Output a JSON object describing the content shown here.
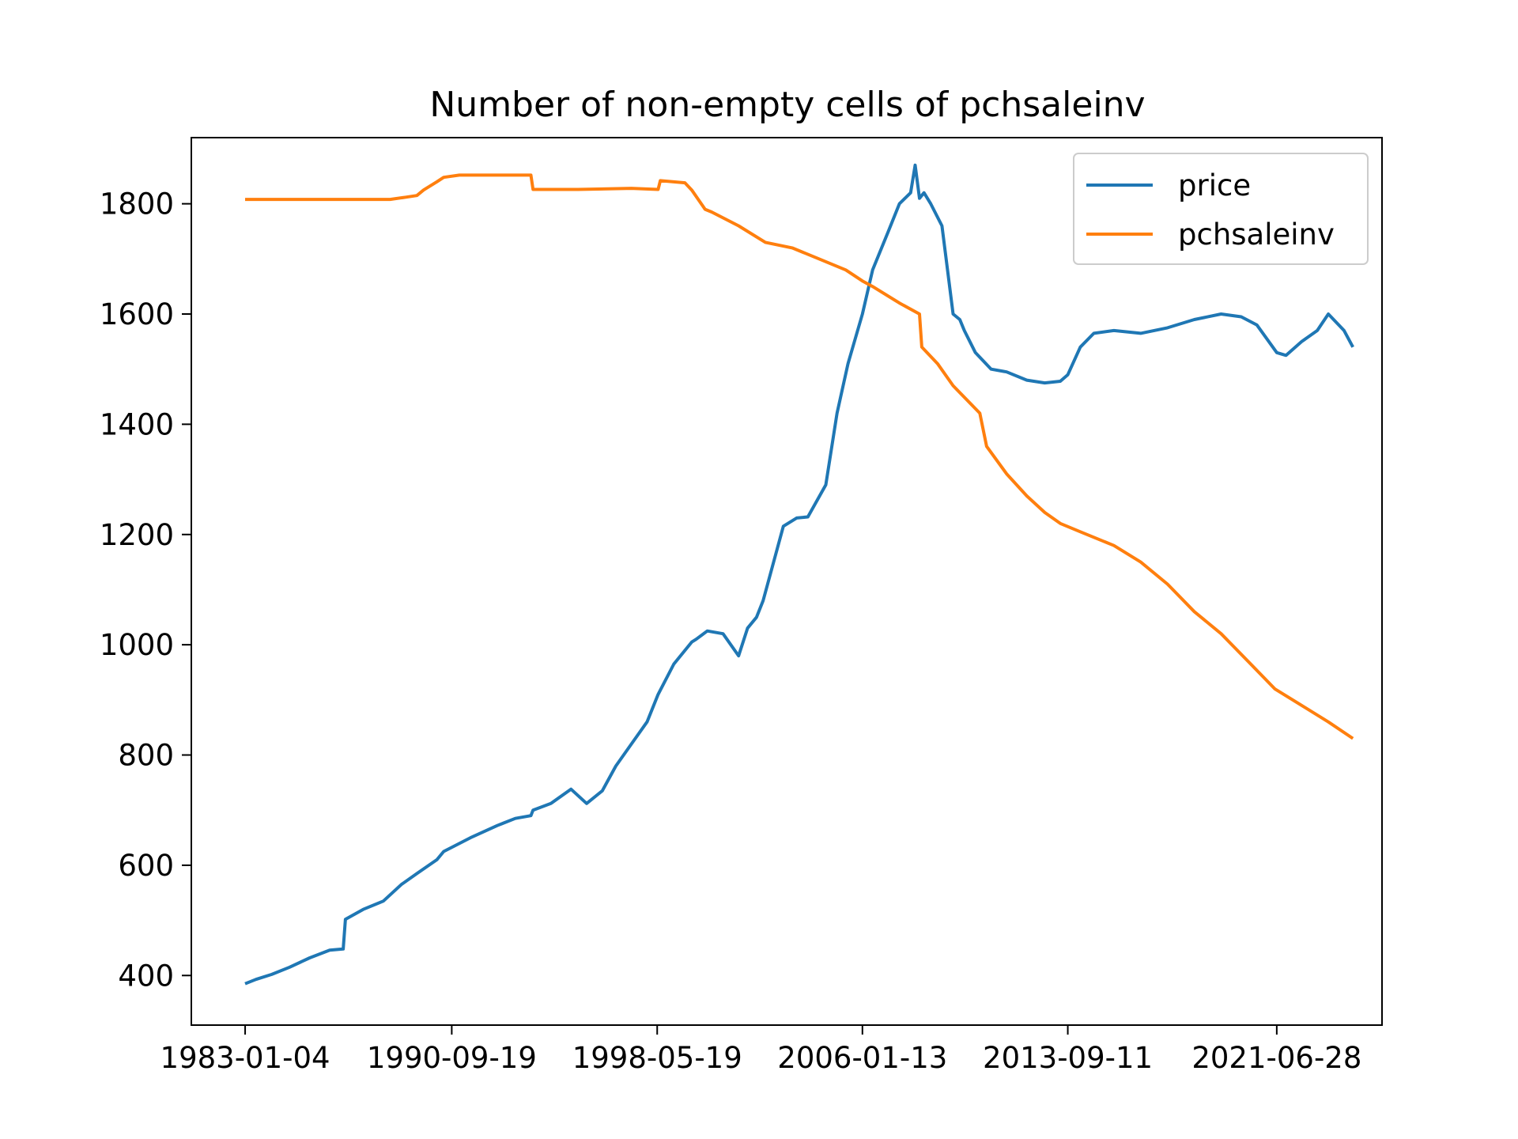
{
  "chart_data": {
    "type": "line",
    "title": "Number of non-empty cells of pchsaleinv",
    "xlabel": "",
    "ylabel": "",
    "x_ticks": [
      "1983-01-04",
      "1990-09-19",
      "1998-05-19",
      "2006-01-13",
      "2013-09-11",
      "2021-06-28"
    ],
    "y_ticks": [
      400,
      600,
      800,
      1000,
      1200,
      1400,
      1600,
      1800
    ],
    "xlim": [
      "1981-01-01",
      "2025-06-01"
    ],
    "ylim": [
      310,
      1920
    ],
    "grid": false,
    "legend_position": "top-right",
    "series": [
      {
        "name": "price",
        "color": "#1f77b4",
        "x": [
          "1983-01-04",
          "1983-06-01",
          "1984-01-01",
          "1984-09-01",
          "1985-06-01",
          "1986-03-01",
          "1986-09-01",
          "1986-10-01",
          "1987-06-01",
          "1988-03-01",
          "1988-11-01",
          "1989-06-01",
          "1990-03-01",
          "1990-06-01",
          "1991-06-01",
          "1992-06-01",
          "1993-02-01",
          "1993-09-01",
          "1993-10-01",
          "1994-06-01",
          "1995-03-01",
          "1995-10-01",
          "1996-05-01",
          "1996-11-01",
          "1997-06-01",
          "1998-01-01",
          "1998-06-01",
          "1999-01-01",
          "1999-09-01",
          "1999-11-01",
          "2000-04-01",
          "2000-11-01",
          "2001-06-01",
          "2001-10-01",
          "2002-02-01",
          "2002-05-01",
          "2002-07-01",
          "2003-02-01",
          "2003-08-01",
          "2004-01-01",
          "2004-09-01",
          "2005-02-01",
          "2005-07-01",
          "2006-01-13",
          "2006-06-01",
          "2007-01-01",
          "2007-06-01",
          "2007-11-01",
          "2008-01-01",
          "2008-03-01",
          "2008-05-01",
          "2008-08-01",
          "2009-01-01",
          "2009-06-01",
          "2009-09-01",
          "2009-11-01",
          "2010-04-01",
          "2010-11-01",
          "2011-06-01",
          "2012-03-01",
          "2012-11-01",
          "2013-06-01",
          "2013-09-11",
          "2014-03-01",
          "2014-09-01",
          "2015-06-01",
          "2016-06-01",
          "2017-06-01",
          "2018-06-01",
          "2019-06-01",
          "2020-03-01",
          "2020-10-01",
          "2021-06-28",
          "2021-11-01",
          "2022-06-01",
          "2023-01-01",
          "2023-06-01",
          "2024-01-01",
          "2024-05-01"
        ],
        "y": [
          385,
          393,
          402,
          415,
          432,
          446,
          448,
          502,
          520,
          535,
          565,
          585,
          610,
          625,
          650,
          672,
          685,
          690,
          700,
          712,
          738,
          712,
          735,
          780,
          820,
          860,
          910,
          965,
          1005,
          1010,
          1025,
          1020,
          980,
          1030,
          1050,
          1080,
          1110,
          1215,
          1230,
          1232,
          1290,
          1420,
          1510,
          1600,
          1680,
          1750,
          1800,
          1820,
          1870,
          1810,
          1820,
          1800,
          1760,
          1600,
          1590,
          1570,
          1530,
          1500,
          1495,
          1480,
          1475,
          1478,
          1490,
          1540,
          1565,
          1570,
          1565,
          1575,
          1590,
          1600,
          1595,
          1580,
          1530,
          1525,
          1550,
          1570,
          1600,
          1570,
          1540
        ]
      },
      {
        "name": "pchsaleinv",
        "color": "#ff7f0e",
        "x": [
          "1983-01-04",
          "1985-06-01",
          "1988-06-01",
          "1989-01-01",
          "1989-06-01",
          "1989-09-01",
          "1990-03-01",
          "1990-06-01",
          "1991-01-01",
          "1992-06-01",
          "1993-09-01",
          "1993-10-01",
          "1995-06-01",
          "1997-06-01",
          "1998-06-01",
          "1998-07-01",
          "1999-06-01",
          "1999-09-01",
          "2000-03-01",
          "2000-06-01",
          "2001-06-01",
          "2002-06-01",
          "2003-06-01",
          "2004-06-01",
          "2005-06-01",
          "2006-01-13",
          "2006-06-01",
          "2007-06-01",
          "2008-03-01",
          "2008-04-01",
          "2008-11-01",
          "2009-06-01",
          "2010-06-01",
          "2010-09-01",
          "2011-06-01",
          "2012-03-01",
          "2012-11-01",
          "2013-06-01",
          "2014-03-01",
          "2015-06-01",
          "2016-06-01",
          "2017-06-01",
          "2018-06-01",
          "2019-06-01",
          "2020-06-01",
          "2021-06-01",
          "2022-06-01",
          "2023-06-01",
          "2024-05-01"
        ],
        "y": [
          1808,
          1808,
          1808,
          1812,
          1815,
          1825,
          1840,
          1848,
          1852,
          1852,
          1852,
          1826,
          1826,
          1828,
          1826,
          1842,
          1838,
          1825,
          1790,
          1785,
          1760,
          1730,
          1720,
          1700,
          1680,
          1660,
          1650,
          1620,
          1600,
          1540,
          1510,
          1470,
          1420,
          1360,
          1310,
          1270,
          1240,
          1220,
          1205,
          1180,
          1150,
          1110,
          1060,
          1020,
          970,
          920,
          890,
          860,
          830
        ]
      }
    ]
  }
}
